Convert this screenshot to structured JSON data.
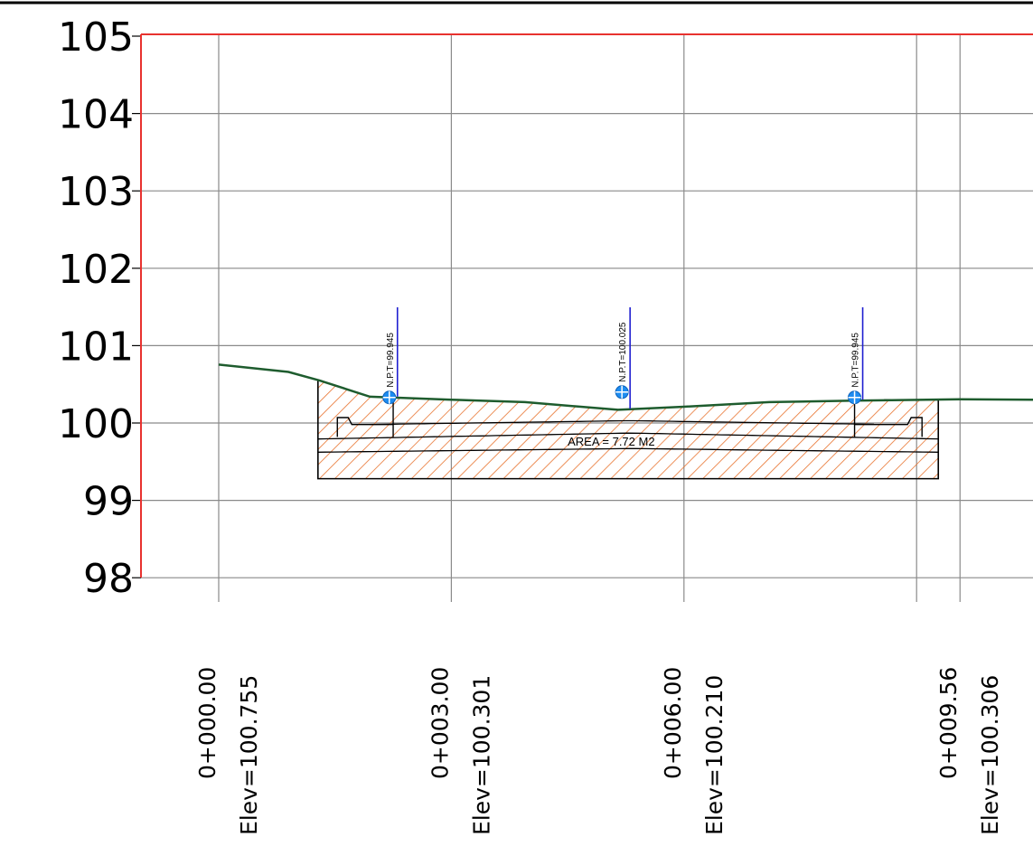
{
  "chart_data": {
    "type": "cross-section",
    "y_axis": {
      "min": 98,
      "max": 105,
      "ticks": [
        {
          "value": 105,
          "label": "105"
        },
        {
          "value": 104,
          "label": "104"
        },
        {
          "value": 103,
          "label": "103"
        },
        {
          "value": 102,
          "label": "102"
        },
        {
          "value": 101,
          "label": "101"
        },
        {
          "value": 100,
          "label": "100"
        },
        {
          "value": 99,
          "label": "99"
        },
        {
          "value": 98,
          "label": "98"
        }
      ]
    },
    "x_axis": {
      "min": 0,
      "max": 10.6,
      "ticks": [
        {
          "offset": 0.0,
          "station": "0+000.00",
          "elev": "Elev=100.755"
        },
        {
          "offset": 3.0,
          "station": "0+003.00",
          "elev": "Elev=100.301"
        },
        {
          "offset": 6.0,
          "station": "0+006.00",
          "elev": "Elev=100.210"
        },
        {
          "offset": 9.56,
          "station": "0+009.56",
          "elev": "Elev=100.306"
        }
      ]
    },
    "ground_profile": [
      {
        "x": 0.0,
        "y": 100.755
      },
      {
        "x": 0.9,
        "y": 100.66
      },
      {
        "x": 1.3,
        "y": 100.55
      },
      {
        "x": 1.95,
        "y": 100.34
      },
      {
        "x": 3.0,
        "y": 100.301
      },
      {
        "x": 3.95,
        "y": 100.27
      },
      {
        "x": 5.15,
        "y": 100.17
      },
      {
        "x": 6.0,
        "y": 100.21
      },
      {
        "x": 7.1,
        "y": 100.27
      },
      {
        "x": 8.2,
        "y": 100.29
      },
      {
        "x": 9.56,
        "y": 100.306
      },
      {
        "x": 10.6,
        "y": 100.3
      }
    ],
    "design_markers": [
      {
        "x": 2.2,
        "label": "N.P.T=99.945",
        "marker_y": 100.33
      },
      {
        "x": 5.2,
        "label": "N.P.T=100.025",
        "marker_y": 100.4
      },
      {
        "x": 8.2,
        "label": "N.P.T=99.945",
        "marker_y": 100.33
      }
    ],
    "excavation_area_label": "AREA = 7.72 M2",
    "colors": {
      "axis": "#e8322f",
      "grid": "#8a8a8a",
      "ground": "#1e5c2e",
      "hatch": "#e8732f",
      "marker_line": "#1f1fd0",
      "marker": "#1e8cf0"
    }
  }
}
